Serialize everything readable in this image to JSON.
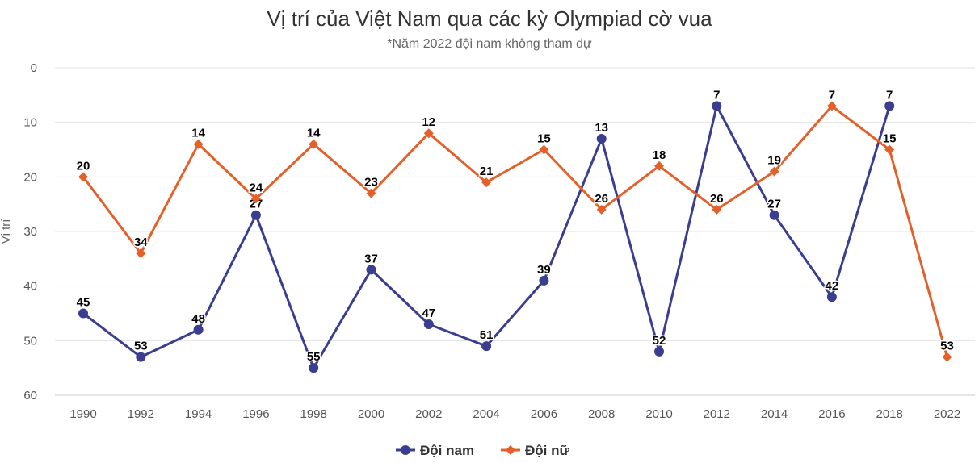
{
  "chart_data": {
    "type": "line",
    "title": "Vị trí của Việt Nam qua các kỳ Olympiad cờ vua",
    "subtitle": "*Năm 2022 đội nam không tham dự",
    "ylabel": "Vị trí",
    "xlabel": "",
    "y_reversed": true,
    "ylim": [
      0,
      60
    ],
    "yticks": [
      0,
      10,
      20,
      30,
      40,
      50,
      60
    ],
    "grid": true,
    "legend_position": "bottom",
    "categories": [
      "1990",
      "1992",
      "1994",
      "1996",
      "1998",
      "2000",
      "2002",
      "2004",
      "2006",
      "2008",
      "2010",
      "2012",
      "2014",
      "2016",
      "2018",
      "2022"
    ],
    "series": [
      {
        "name": "Đội nam",
        "color": "#3b3d8f",
        "marker": "circle",
        "values": [
          45,
          53,
          48,
          27,
          55,
          37,
          47,
          51,
          39,
          13,
          52,
          7,
          27,
          42,
          7,
          null
        ]
      },
      {
        "name": "Đội nữ",
        "color": "#e4602a",
        "marker": "diamond",
        "values": [
          20,
          34,
          14,
          24,
          14,
          23,
          12,
          21,
          15,
          26,
          18,
          26,
          19,
          7,
          15,
          53
        ]
      }
    ]
  }
}
